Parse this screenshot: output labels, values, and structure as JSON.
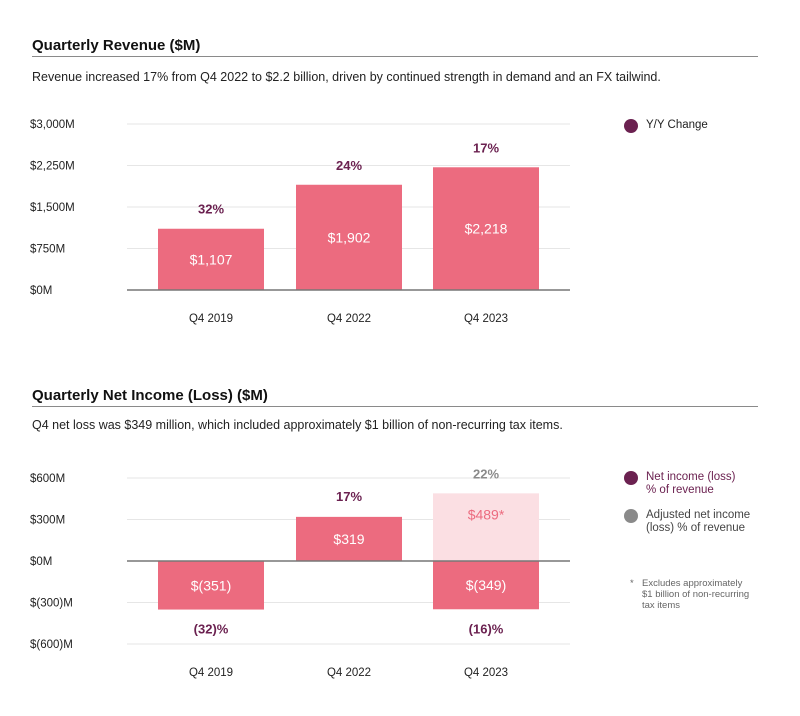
{
  "colors": {
    "bar": "#ec6b7f",
    "bar_light": "#fbdfe3",
    "accent": "#6b2150",
    "adjusted": "#8a8a8a",
    "axis": "#777777",
    "grid": "#e6e6e6"
  },
  "revenue": {
    "title": "Quarterly Revenue ($M)",
    "subtitle": "Revenue increased 17% from Q4 2022 to $2.2 billion, driven by continued strength in demand and an FX tailwind.",
    "legend": [
      {
        "label": "Y/Y Change",
        "color": "#6b2150"
      }
    ]
  },
  "income": {
    "title": "Quarterly Net Income (Loss) ($M)",
    "subtitle": "Q4 net loss was $349 million, which included approximately $1 billion of non-recurring tax items.",
    "legend": [
      {
        "label": "Net income (loss)\n% of revenue",
        "color": "#6b2150",
        "text_color": "#6b2150"
      },
      {
        "label": "Adjusted net income\n(loss) % of revenue",
        "color": "#8a8a8a",
        "text_color": "#444444"
      }
    ],
    "footnote_mark": "*",
    "footnote": "Excludes approximately\n$1 billion of non-recurring\ntax items"
  },
  "chart_data": [
    {
      "type": "bar",
      "title": "Quarterly Revenue ($M)",
      "categories": [
        "Q4 2019",
        "Q4 2022",
        "Q4 2023"
      ],
      "values": [
        1107,
        1902,
        2218
      ],
      "value_labels": [
        "$1,107",
        "$1,902",
        "$2,218"
      ],
      "yoy_labels": [
        "32%",
        "24%",
        "17%"
      ],
      "ylim": [
        0,
        3000
      ],
      "yticks": [
        0,
        750,
        1500,
        2250,
        3000
      ],
      "ytick_labels": [
        "$0M",
        "$750M",
        "$1,500M",
        "$2,250M",
        "$3,000M"
      ],
      "legend": [
        "Y/Y Change"
      ]
    },
    {
      "type": "bar",
      "title": "Quarterly Net Income (Loss) ($M)",
      "categories": [
        "Q4 2019",
        "Q4 2022",
        "Q4 2023"
      ],
      "series": [
        {
          "name": "Net income (loss)",
          "values": [
            -351,
            319,
            -349
          ],
          "value_labels": [
            "$(351)",
            "$319",
            "$(349)"
          ],
          "pct_labels": [
            "(32)%",
            "17%",
            "(16)%"
          ]
        },
        {
          "name": "Adjusted net income (loss)",
          "values": [
            null,
            null,
            489
          ],
          "value_labels": [
            null,
            null,
            "$489*"
          ],
          "pct_labels": [
            null,
            null,
            "22%"
          ]
        }
      ],
      "ylim": [
        -600,
        600
      ],
      "yticks": [
        600,
        300,
        0,
        -300,
        -600
      ],
      "ytick_labels": [
        "$600M",
        "$300M",
        "$0M",
        "$(300)M",
        "$(600)M"
      ],
      "legend": [
        "Net income (loss) % of revenue",
        "Adjusted net income (loss) % of revenue"
      ]
    }
  ]
}
